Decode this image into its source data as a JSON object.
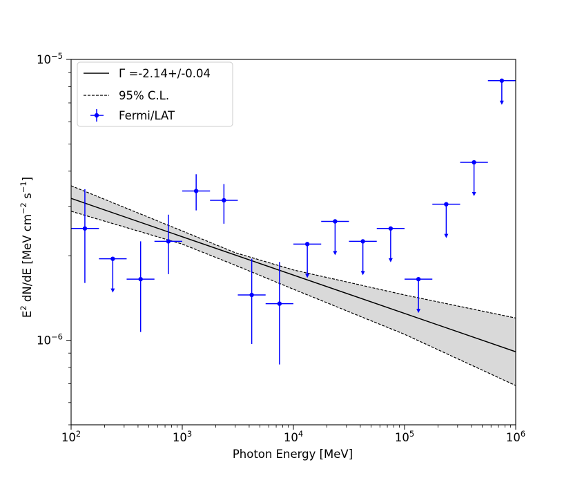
{
  "chart_data": {
    "type": "scatter",
    "xscale": "log",
    "yscale": "log",
    "xlim": [
      100,
      1000000
    ],
    "ylim": [
      5e-07,
      1e-05
    ],
    "xlabel": "Photon Energy [MeV]",
    "ylabel_parts": {
      "base": "E",
      "sup1": "2",
      "mid": " dN/dE [MeV cm",
      "sup2": "−2",
      "mid2": " s",
      "sup3": "−1",
      "end": "]"
    },
    "x_ticks": [
      {
        "value": 100,
        "base": "10",
        "exp": "2"
      },
      {
        "value": 1000,
        "base": "10",
        "exp": "3"
      },
      {
        "value": 10000,
        "base": "10",
        "exp": "4"
      },
      {
        "value": 100000,
        "base": "10",
        "exp": "5"
      },
      {
        "value": 1000000,
        "base": "10",
        "exp": "6"
      }
    ],
    "y_ticks": [
      {
        "value": 1e-05,
        "base": "10",
        "exp": "−5"
      },
      {
        "value": 1e-06,
        "base": "10",
        "exp": "−6"
      }
    ],
    "legend": {
      "position": "upper-left",
      "entries": [
        {
          "label": "Γ =-2.14+/-0.04",
          "style": "solid-line"
        },
        {
          "label": "95% C.L.",
          "style": "dashed-line"
        },
        {
          "label": "Fermi/LAT",
          "style": "errorbar-marker"
        }
      ]
    },
    "fit": {
      "name": "Γ =-2.14+/-0.04",
      "x": [
        100,
        1000000
      ],
      "y": [
        3.2e-06,
        9.1e-07
      ]
    },
    "confidence_band": {
      "name": "95% C.L.",
      "x": [
        100,
        1000,
        3000,
        10000,
        100000,
        1000000
      ],
      "upper": [
        3.55e-06,
        2.45e-06,
        2.05e-06,
        1.78e-06,
        1.45e-06,
        1.2e-06
      ],
      "lower": [
        2.88e-06,
        2.2e-06,
        1.85e-06,
        1.52e-06,
        1.05e-06,
        6.9e-07
      ]
    },
    "series": [
      {
        "name": "Fermi/LAT",
        "color": "#0000ff",
        "points": [
          {
            "x": 133,
            "y": 2.5e-06,
            "xlo": 100,
            "xhi": 178,
            "ylo": 1.6e-06,
            "yhi": 3.45e-06,
            "upper_limit": false
          },
          {
            "x": 237,
            "y": 1.95e-06,
            "xlo": 178,
            "xhi": 316,
            "ylo": null,
            "yhi": null,
            "upper_limit": true
          },
          {
            "x": 422,
            "y": 1.65e-06,
            "xlo": 316,
            "xhi": 562,
            "ylo": 1.07e-06,
            "yhi": 2.25e-06,
            "upper_limit": false
          },
          {
            "x": 750,
            "y": 2.25e-06,
            "xlo": 562,
            "xhi": 1000,
            "ylo": 1.72e-06,
            "yhi": 2.8e-06,
            "upper_limit": false
          },
          {
            "x": 1334,
            "y": 3.4e-06,
            "xlo": 1000,
            "xhi": 1778,
            "ylo": 2.9e-06,
            "yhi": 3.9e-06,
            "upper_limit": false
          },
          {
            "x": 2371,
            "y": 3.15e-06,
            "xlo": 1778,
            "xhi": 3162,
            "ylo": 2.6e-06,
            "yhi": 3.6e-06,
            "upper_limit": false
          },
          {
            "x": 4217,
            "y": 1.45e-06,
            "xlo": 3162,
            "xhi": 5623,
            "ylo": 9.7e-07,
            "yhi": 1.95e-06,
            "upper_limit": false
          },
          {
            "x": 7499,
            "y": 1.35e-06,
            "xlo": 5623,
            "xhi": 10000,
            "ylo": 8.2e-07,
            "yhi": 1.9e-06,
            "upper_limit": false
          },
          {
            "x": 13335,
            "y": 2.2e-06,
            "xlo": 10000,
            "xhi": 17783,
            "ylo": null,
            "yhi": null,
            "upper_limit": true
          },
          {
            "x": 23714,
            "y": 2.65e-06,
            "xlo": 17783,
            "xhi": 31623,
            "ylo": null,
            "yhi": null,
            "upper_limit": true
          },
          {
            "x": 42170,
            "y": 2.25e-06,
            "xlo": 31623,
            "xhi": 56234,
            "ylo": null,
            "yhi": null,
            "upper_limit": true
          },
          {
            "x": 74989,
            "y": 2.5e-06,
            "xlo": 56234,
            "xhi": 100000,
            "ylo": null,
            "yhi": null,
            "upper_limit": true
          },
          {
            "x": 133352,
            "y": 1.65e-06,
            "xlo": 100000,
            "xhi": 177828,
            "ylo": null,
            "yhi": null,
            "upper_limit": true
          },
          {
            "x": 237137,
            "y": 3.05e-06,
            "xlo": 177828,
            "xhi": 316228,
            "ylo": null,
            "yhi": null,
            "upper_limit": true
          },
          {
            "x": 421697,
            "y": 4.3e-06,
            "xlo": 316228,
            "xhi": 562341,
            "ylo": null,
            "yhi": null,
            "upper_limit": true
          },
          {
            "x": 749894,
            "y": 8.4e-06,
            "xlo": 562341,
            "xhi": 1000000,
            "ylo": null,
            "yhi": null,
            "upper_limit": true
          }
        ]
      }
    ]
  }
}
